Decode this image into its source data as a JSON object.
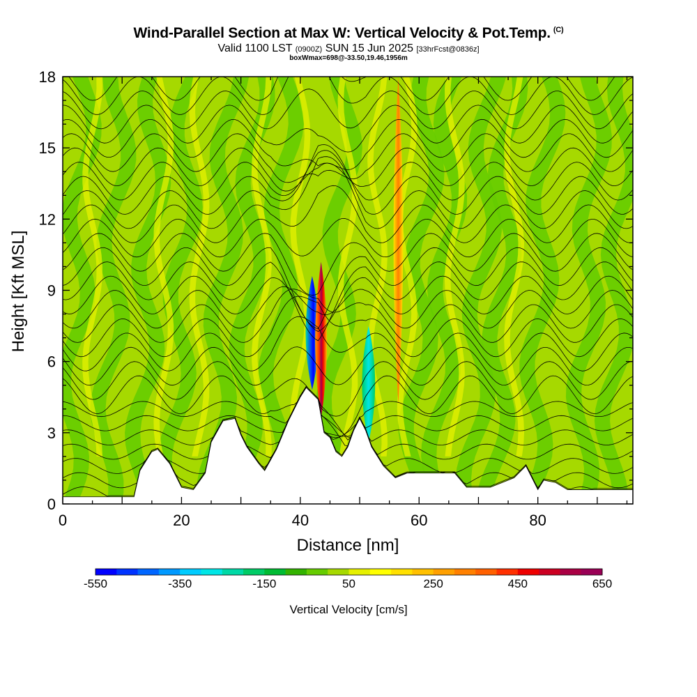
{
  "header": {
    "title": "Wind-Parallel Section at Max W: Vertical Velocity & Pot.Temp.",
    "copyright": "(C)",
    "valid_prefix": "Valid 1100 LST",
    "valid_utc": "(0900Z)",
    "valid_date": "SUN 15 Jun 2025",
    "forecast_info": "[33hrFcst@0836z]",
    "box_info": "boxWmax=698@-33.50,19.46,1956m"
  },
  "chart_data": {
    "type": "heatmap",
    "title": "Wind-Parallel Section at Max W: Vertical Velocity & Pot.Temp.",
    "xlabel": "Distance [nm]",
    "ylabel": "Height [Kft MSL]",
    "xlim": [
      0,
      96
    ],
    "ylim": [
      0,
      18
    ],
    "x_ticks": [
      0,
      20,
      40,
      60,
      80
    ],
    "y_ticks": [
      0,
      3,
      6,
      9,
      12,
      15,
      18
    ],
    "background_colors": {
      "light": "#a6d900",
      "mid": "#66cc00"
    },
    "terrain": {
      "x": [
        0,
        10,
        12,
        13,
        15,
        16,
        18,
        20,
        22,
        24,
        25,
        27,
        29,
        30,
        31,
        33,
        34,
        36,
        38,
        40,
        41,
        43,
        44,
        45,
        46,
        47,
        48,
        49,
        50,
        51,
        52,
        54,
        56,
        58,
        60,
        62,
        64,
        66,
        68,
        70,
        72,
        74,
        76,
        78,
        79,
        80,
        81,
        83,
        85,
        90,
        96
      ],
      "y": [
        0.3,
        0.3,
        0.3,
        1.4,
        2.2,
        2.3,
        1.7,
        0.7,
        0.6,
        1.3,
        2.6,
        3.5,
        3.6,
        2.9,
        2.4,
        1.7,
        1.4,
        2.3,
        3.5,
        4.5,
        4.9,
        4.4,
        3.0,
        2.8,
        2.2,
        2.0,
        2.4,
        3.1,
        3.6,
        3.1,
        2.4,
        1.6,
        1.1,
        1.3,
        1.3,
        1.3,
        1.3,
        1.3,
        0.7,
        0.7,
        0.7,
        0.9,
        1.1,
        1.6,
        1.1,
        0.6,
        1.0,
        0.9,
        0.6,
        0.6,
        0.6
      ]
    },
    "updraft_cores": [
      {
        "x": 43.5,
        "bottom": 3.6,
        "top": 10.2,
        "value": 650
      },
      {
        "x": 56.5,
        "bottom": 4.2,
        "top": 18.0,
        "value": 250
      }
    ],
    "downdraft_cores": [
      {
        "x": 42.0,
        "bottom": 4.8,
        "top": 9.6,
        "value": -550
      },
      {
        "x": 51.5,
        "bottom": 2.6,
        "top": 7.5,
        "value": -350
      }
    ],
    "colorbar": {
      "title": "Vertical Velocity [cm/s]",
      "labels": [
        "-550",
        "-350",
        "-150",
        "50",
        "250",
        "450",
        "650"
      ],
      "colors": [
        "#0000ff",
        "#0033ff",
        "#0066ff",
        "#0099ff",
        "#00ccff",
        "#00e6e6",
        "#00d9a6",
        "#00cc66",
        "#00bb33",
        "#33b300",
        "#66cc00",
        "#a6d900",
        "#e6f000",
        "#ffff00",
        "#ffe000",
        "#ffc000",
        "#ffa000",
        "#ff8000",
        "#ff6000",
        "#ff3000",
        "#ee0000",
        "#cc0022",
        "#aa0044",
        "#990055"
      ]
    }
  }
}
